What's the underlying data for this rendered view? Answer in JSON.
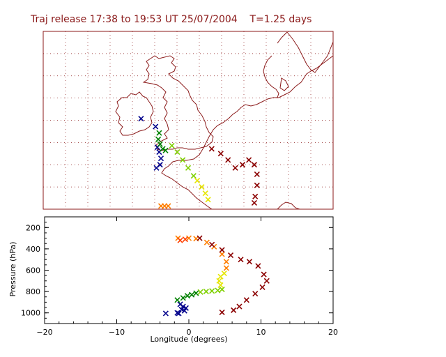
{
  "title": "Traj release 17:38 to 19:53 UT 25/07/2004    T=1.25 days",
  "colors": {
    "axes": "#8b1a1a",
    "grid": "#8b1a1a",
    "coast": "#8b1a1a",
    "text_axes": "#000000"
  },
  "chart_data": [
    {
      "type": "map",
      "grid": true,
      "description_of_marks": "trajectory positions plotted with x markers, colored by release time",
      "series": [
        {
          "color": "#00008b",
          "points": [
            [
              -3.2,
              54.5
            ],
            [
              -1.6,
              54.0
            ],
            [
              -1.4,
              52.7
            ],
            [
              -1.2,
              52.4
            ],
            [
              -1.0,
              52.0
            ],
            [
              -1.1,
              51.6
            ],
            [
              -1.5,
              51.4
            ]
          ]
        },
        {
          "color": "#008000",
          "points": [
            [
              -1.2,
              53.6
            ],
            [
              -1.3,
              53.2
            ],
            [
              -1.1,
              52.9
            ],
            [
              -0.8,
              52.6
            ],
            [
              -0.5,
              52.5
            ]
          ]
        },
        {
          "color": "#7fd000",
          "points": [
            [
              0.2,
              52.8
            ],
            [
              0.8,
              52.4
            ],
            [
              1.4,
              51.9
            ],
            [
              2.0,
              51.4
            ],
            [
              2.6,
              50.9
            ]
          ]
        },
        {
          "color": "#e6e600",
          "points": [
            [
              3.0,
              50.6
            ],
            [
              3.5,
              50.2
            ],
            [
              3.9,
              49.8
            ],
            [
              4.2,
              49.4
            ]
          ]
        },
        {
          "color": "#ff7f00",
          "points": [
            [
              -1.0,
              49.0
            ],
            [
              -0.6,
              49.0
            ],
            [
              -0.2,
              49.0
            ]
          ]
        },
        {
          "color": "#8b0000",
          "points": [
            [
              4.6,
              52.6
            ],
            [
              5.6,
              52.3
            ],
            [
              6.4,
              51.9
            ],
            [
              7.2,
              51.4
            ],
            [
              8.0,
              51.6
            ],
            [
              8.7,
              51.9
            ],
            [
              9.3,
              51.6
            ],
            [
              9.6,
              51.0
            ],
            [
              9.6,
              50.3
            ],
            [
              9.4,
              49.6
            ],
            [
              9.3,
              49.2
            ]
          ]
        }
      ]
    },
    {
      "type": "scatter",
      "xlabel": "Longitude  (degrees)",
      "ylabel": "Pressure  (hPa)",
      "xlim": [
        -20,
        20
      ],
      "ylim": [
        1100,
        100
      ],
      "xticks": [
        "−20",
        "−10",
        "0",
        "10",
        "20"
      ],
      "yticks": [
        "200",
        "400",
        "600",
        "800",
        "1000"
      ],
      "series": [
        {
          "color": "#00008b",
          "points": [
            [
              -3.2,
              1005
            ],
            [
              -1.6,
              1000
            ],
            [
              -1.0,
              970
            ],
            [
              -0.8,
              940
            ],
            [
              -1.2,
              920
            ],
            [
              -0.6,
              980
            ],
            [
              -1.4,
              1005
            ],
            [
              -0.4,
              955
            ]
          ]
        },
        {
          "color": "#008000",
          "points": [
            [
              -1.6,
              880
            ],
            [
              -0.8,
              860
            ],
            [
              -0.2,
              840
            ],
            [
              0.4,
              830
            ],
            [
              1.0,
              815
            ]
          ]
        },
        {
          "color": "#7fd000",
          "points": [
            [
              1.6,
              805
            ],
            [
              2.4,
              800
            ],
            [
              3.2,
              795
            ],
            [
              4.0,
              790
            ],
            [
              4.6,
              780
            ]
          ]
        },
        {
          "color": "#e6e600",
          "points": [
            [
              4.4,
              740
            ],
            [
              4.2,
              700
            ],
            [
              4.4,
              660
            ],
            [
              4.9,
              630
            ]
          ]
        },
        {
          "color": "#ff7f00",
          "points": [
            [
              -1.5,
              300
            ],
            [
              0.0,
              300
            ],
            [
              1.0,
              305
            ],
            [
              2.5,
              340
            ],
            [
              3.5,
              380
            ],
            [
              4.6,
              450
            ],
            [
              5.2,
              520
            ],
            [
              5.2,
              580
            ]
          ]
        },
        {
          "color": "#ff4000",
          "points": [
            [
              -1.2,
              320
            ],
            [
              -0.5,
              310
            ]
          ]
        },
        {
          "color": "#8b0000",
          "points": [
            [
              1.5,
              300
            ],
            [
              3.2,
              360
            ],
            [
              4.6,
              410
            ],
            [
              5.8,
              460
            ],
            [
              7.2,
              500
            ],
            [
              8.4,
              520
            ],
            [
              9.6,
              560
            ],
            [
              10.4,
              640
            ],
            [
              10.8,
              700
            ],
            [
              10.2,
              760
            ],
            [
              9.2,
              820
            ],
            [
              8.0,
              880
            ],
            [
              7.0,
              940
            ],
            [
              6.2,
              975
            ],
            [
              4.6,
              995
            ]
          ]
        }
      ]
    }
  ]
}
